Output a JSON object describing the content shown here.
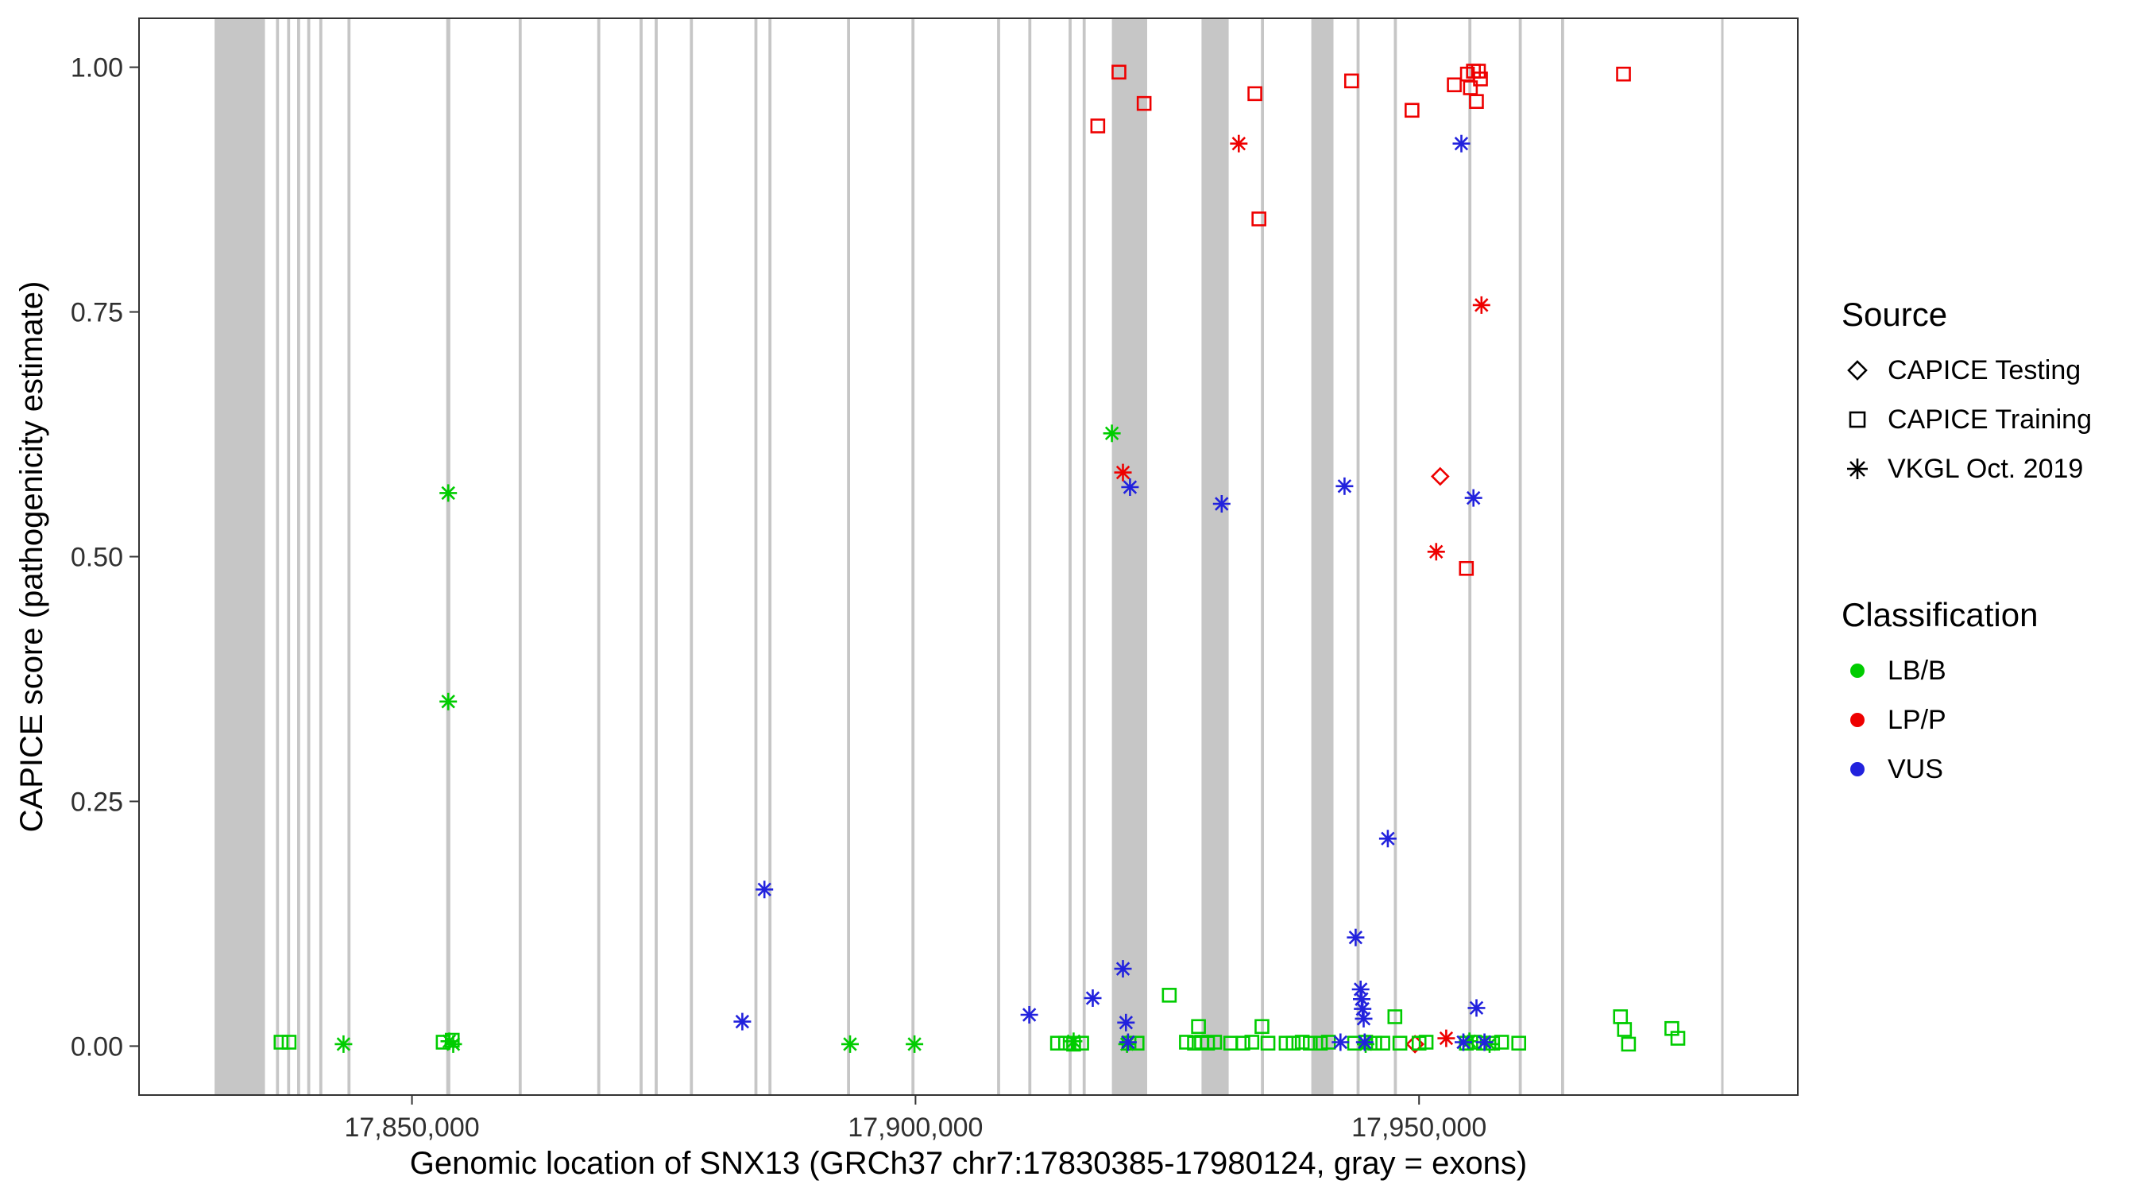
{
  "figure": {
    "xlabel": "Genomic location of SNX13 (GRCh37 chr7:17830385-17980124, gray = exons)",
    "ylabel": "CAPICE score (pathogenicity estimate)"
  },
  "legend": {
    "source": {
      "title": "Source",
      "items": [
        {
          "label": "CAPICE Testing",
          "shape": "diamond"
        },
        {
          "label": "CAPICE Training",
          "shape": "square"
        },
        {
          "label": "VKGL Oct. 2019",
          "shape": "asterisk"
        }
      ]
    },
    "classification": {
      "title": "Classification",
      "items": [
        {
          "label": "LB/B",
          "color": "#00CC00"
        },
        {
          "label": "LP/P",
          "color": "#EE0000"
        },
        {
          "label": "VUS",
          "color": "#2222DD"
        }
      ]
    }
  },
  "chart_data": {
    "type": "scatter",
    "title": "",
    "xlabel": "Genomic location of SNX13 (GRCh37 chr7:17830385-17980124, gray = exons)",
    "ylabel": "CAPICE score (pathogenicity estimate)",
    "x_domain": [
      17822898,
      17987611
    ],
    "y_domain": [
      -0.05,
      1.05
    ],
    "x_ticks": [
      {
        "value": 17850000,
        "label": "17,850,000"
      },
      {
        "value": 17900000,
        "label": "17,900,000"
      },
      {
        "value": 17950000,
        "label": "17,950,000"
      }
    ],
    "y_ticks": [
      {
        "value": 0.0,
        "label": "0.00"
      },
      {
        "value": 0.25,
        "label": "0.25"
      },
      {
        "value": 0.5,
        "label": "0.50"
      },
      {
        "value": 0.75,
        "label": "0.75"
      },
      {
        "value": 1.0,
        "label": "1.00"
      }
    ],
    "grid": false,
    "legend_position": "right",
    "exon_color": "#C6C6C6",
    "exons": [
      [
        17830400,
        17835400
      ],
      [
        17836500,
        17836800
      ],
      [
        17837600,
        17837900
      ],
      [
        17838600,
        17838900
      ],
      [
        17839600,
        17839900
      ],
      [
        17840800,
        17841100
      ],
      [
        17843600,
        17843900
      ],
      [
        17853400,
        17853800
      ],
      [
        17860600,
        17860900
      ],
      [
        17868400,
        17868700
      ],
      [
        17872600,
        17872900
      ],
      [
        17874100,
        17874400
      ],
      [
        17877600,
        17877900
      ],
      [
        17884000,
        17884300
      ],
      [
        17885400,
        17885700
      ],
      [
        17893200,
        17893500
      ],
      [
        17899600,
        17899900
      ],
      [
        17908100,
        17908400
      ],
      [
        17911200,
        17911500
      ],
      [
        17915200,
        17915500
      ],
      [
        17916600,
        17916900
      ],
      [
        17919500,
        17923000
      ],
      [
        17928400,
        17931100
      ],
      [
        17934300,
        17934600
      ],
      [
        17939300,
        17941500
      ],
      [
        17943800,
        17944100
      ],
      [
        17947500,
        17947800
      ],
      [
        17954900,
        17955200
      ],
      [
        17959900,
        17960200
      ],
      [
        17964100,
        17964400
      ],
      [
        17980000,
        17980200
      ]
    ],
    "classification_colors": {
      "LB/B": "#00CC00",
      "LP/P": "#EE0000",
      "VUS": "#2222DD"
    },
    "source_shapes": {
      "CAPICE Testing": "diamond",
      "CAPICE Training": "square",
      "VKGL Oct. 2019": "asterisk"
    },
    "series": [
      {
        "name": "CAPICE Testing LP/P",
        "source": "CAPICE Testing",
        "classification": "LP/P",
        "points": [
          [
            17952100,
            0.582
          ],
          [
            17949600,
            0.002
          ]
        ]
      },
      {
        "name": "CAPICE Training LP/P",
        "source": "CAPICE Training",
        "classification": "LP/P",
        "points": [
          [
            17918100,
            0.94
          ],
          [
            17920200,
            0.995
          ],
          [
            17922700,
            0.963
          ],
          [
            17933700,
            0.973
          ],
          [
            17934100,
            0.845
          ],
          [
            17943300,
            0.986
          ],
          [
            17949300,
            0.956
          ],
          [
            17953500,
            0.982
          ],
          [
            17954800,
            0.993
          ],
          [
            17955100,
            0.979
          ],
          [
            17955400,
            0.996
          ],
          [
            17955700,
            0.965
          ],
          [
            17955900,
            0.996
          ],
          [
            17956100,
            0.988
          ],
          [
            17970300,
            0.993
          ],
          [
            17954700,
            0.488
          ]
        ]
      },
      {
        "name": "VKGL LP/P",
        "source": "VKGL Oct. 2019",
        "classification": "LP/P",
        "points": [
          [
            17932100,
            0.922
          ],
          [
            17956200,
            0.757
          ],
          [
            17920600,
            0.586
          ],
          [
            17951700,
            0.505
          ],
          [
            17952700,
            0.008
          ]
        ]
      },
      {
        "name": "VKGL LB/B",
        "source": "VKGL Oct. 2019",
        "classification": "LB/B",
        "points": [
          [
            17853600,
            0.565
          ],
          [
            17853600,
            0.352
          ],
          [
            17919500,
            0.626
          ],
          [
            17843200,
            0.002
          ],
          [
            17853700,
            0.005
          ],
          [
            17854100,
            0.002
          ],
          [
            17893500,
            0.002
          ],
          [
            17899900,
            0.002
          ],
          [
            17915700,
            0.005
          ],
          [
            17921000,
            0.002
          ],
          [
            17944700,
            0.002
          ],
          [
            17955000,
            0.005
          ],
          [
            17957000,
            0.002
          ]
        ]
      },
      {
        "name": "CAPICE Training LB/B",
        "source": "CAPICE Training",
        "classification": "LB/B",
        "points": [
          [
            17837000,
            0.004
          ],
          [
            17837800,
            0.004
          ],
          [
            17853100,
            0.004
          ],
          [
            17854000,
            0.006
          ],
          [
            17914100,
            0.003
          ],
          [
            17914900,
            0.003
          ],
          [
            17915700,
            0.002
          ],
          [
            17916500,
            0.003
          ],
          [
            17921200,
            0.003
          ],
          [
            17922000,
            0.003
          ],
          [
            17925200,
            0.052
          ],
          [
            17926900,
            0.004
          ],
          [
            17927700,
            0.003
          ],
          [
            17928100,
            0.02
          ],
          [
            17928400,
            0.004
          ],
          [
            17929000,
            0.003
          ],
          [
            17929700,
            0.004
          ],
          [
            17931300,
            0.003
          ],
          [
            17932500,
            0.003
          ],
          [
            17933400,
            0.004
          ],
          [
            17934400,
            0.02
          ],
          [
            17935000,
            0.003
          ],
          [
            17936800,
            0.003
          ],
          [
            17937500,
            0.003
          ],
          [
            17938400,
            0.004
          ],
          [
            17939200,
            0.003
          ],
          [
            17940200,
            0.003
          ],
          [
            17941000,
            0.004
          ],
          [
            17943600,
            0.003
          ],
          [
            17944700,
            0.004
          ],
          [
            17945600,
            0.003
          ],
          [
            17946400,
            0.003
          ],
          [
            17947600,
            0.03
          ],
          [
            17948100,
            0.003
          ],
          [
            17950000,
            0.003
          ],
          [
            17950700,
            0.004
          ],
          [
            17954700,
            0.003
          ],
          [
            17955500,
            0.004
          ],
          [
            17956400,
            0.003
          ],
          [
            17957300,
            0.003
          ],
          [
            17958200,
            0.004
          ],
          [
            17959900,
            0.003
          ],
          [
            17970000,
            0.03
          ],
          [
            17970400,
            0.017
          ],
          [
            17970800,
            0.002
          ],
          [
            17975100,
            0.018
          ],
          [
            17975700,
            0.008
          ]
        ]
      },
      {
        "name": "VKGL VUS",
        "source": "VKGL Oct. 2019",
        "classification": "VUS",
        "points": [
          [
            17882800,
            0.025
          ],
          [
            17885000,
            0.16
          ],
          [
            17911300,
            0.032
          ],
          [
            17917600,
            0.049
          ],
          [
            17920600,
            0.079
          ],
          [
            17920900,
            0.024
          ],
          [
            17921100,
            0.004
          ],
          [
            17921300,
            0.571
          ],
          [
            17930400,
            0.554
          ],
          [
            17942200,
            0.004
          ],
          [
            17942600,
            0.572
          ],
          [
            17943700,
            0.111
          ],
          [
            17944200,
            0.058
          ],
          [
            17944300,
            0.048
          ],
          [
            17944400,
            0.038
          ],
          [
            17944500,
            0.028
          ],
          [
            17944600,
            0.004
          ],
          [
            17946900,
            0.212
          ],
          [
            17954200,
            0.922
          ],
          [
            17954400,
            0.004
          ],
          [
            17955400,
            0.56
          ],
          [
            17955700,
            0.039
          ],
          [
            17956500,
            0.004
          ]
        ]
      }
    ]
  }
}
